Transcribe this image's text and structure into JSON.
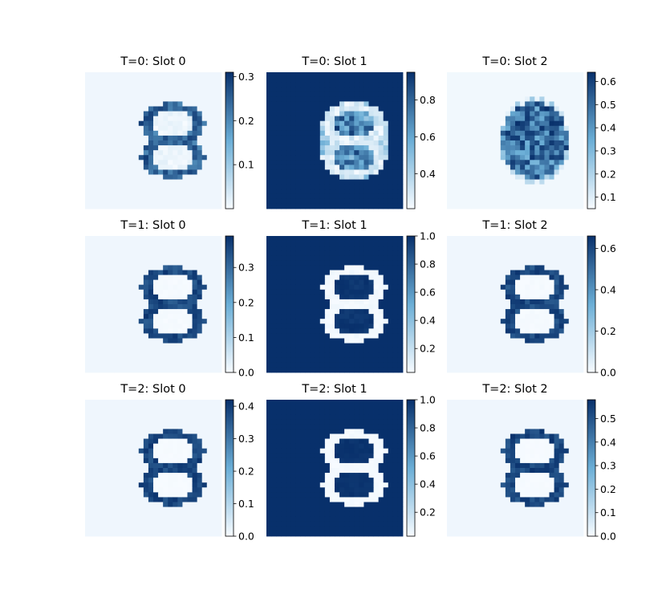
{
  "colors": {
    "cmap_low": "#f7fbff",
    "cmap_mid": "#6baed6",
    "cmap_high": "#08306b",
    "axis": "#000000"
  },
  "chart_data": [
    {
      "type": "heatmap",
      "title": "T=0: Slot 0",
      "cmap": "Blues",
      "grid_size": 28,
      "image": "ring_outline",
      "noise": 0.25,
      "background": "low",
      "clim": [
        0.0,
        0.31
      ],
      "colorbar_ticks": [
        0.1,
        0.2,
        0.3
      ],
      "colorbar_tick_labels": [
        "0.1",
        "0.2",
        "0.3"
      ]
    },
    {
      "type": "heatmap",
      "title": "T=0: Slot 1",
      "cmap": "Blues",
      "grid_size": 28,
      "image": "ring_inverted",
      "noise": 0.35,
      "background": "high",
      "clim": [
        0.21,
        0.95
      ],
      "colorbar_ticks": [
        0.4,
        0.6,
        0.8
      ],
      "colorbar_tick_labels": [
        "0.4",
        "0.6",
        "0.8"
      ]
    },
    {
      "type": "heatmap",
      "title": "T=0: Slot 2",
      "cmap": "Blues",
      "grid_size": 28,
      "image": "ring_filled",
      "noise": 0.4,
      "background": "low",
      "clim": [
        0.05,
        0.64
      ],
      "colorbar_ticks": [
        0.1,
        0.2,
        0.3,
        0.4,
        0.5,
        0.6
      ],
      "colorbar_tick_labels": [
        "0.1",
        "0.2",
        "0.3",
        "0.4",
        "0.5",
        "0.6"
      ]
    },
    {
      "type": "heatmap",
      "title": "T=1: Slot 0",
      "cmap": "Blues",
      "grid_size": 28,
      "image": "ring_outline",
      "noise": 0.05,
      "background": "low",
      "clim": [
        0.0,
        0.39
      ],
      "colorbar_ticks": [
        0.0,
        0.1,
        0.2,
        0.3
      ],
      "colorbar_tick_labels": [
        "0.0",
        "0.1",
        "0.2",
        "0.3"
      ]
    },
    {
      "type": "heatmap",
      "title": "T=1: Slot 1",
      "cmap": "Blues",
      "grid_size": 28,
      "image": "ring_inverted",
      "noise": 0.05,
      "background": "high",
      "clim": [
        0.03,
        1.0
      ],
      "colorbar_ticks": [
        0.2,
        0.4,
        0.6,
        0.8,
        1.0
      ],
      "colorbar_tick_labels": [
        "0.2",
        "0.4",
        "0.6",
        "0.8",
        "1.0"
      ]
    },
    {
      "type": "heatmap",
      "title": "T=1: Slot 2",
      "cmap": "Blues",
      "grid_size": 28,
      "image": "ring_outline",
      "noise": 0.05,
      "background": "low",
      "clim": [
        0.0,
        0.66
      ],
      "colorbar_ticks": [
        0.0,
        0.2,
        0.4,
        0.6
      ],
      "colorbar_tick_labels": [
        "0.0",
        "0.2",
        "0.4",
        "0.6"
      ]
    },
    {
      "type": "heatmap",
      "title": "T=2: Slot 0",
      "cmap": "Blues",
      "grid_size": 28,
      "image": "ring_outline",
      "noise": 0.03,
      "background": "low",
      "clim": [
        0.0,
        0.42
      ],
      "colorbar_ticks": [
        0.0,
        0.1,
        0.2,
        0.3,
        0.4
      ],
      "colorbar_tick_labels": [
        "0.0",
        "0.1",
        "0.2",
        "0.3",
        "0.4"
      ]
    },
    {
      "type": "heatmap",
      "title": "T=2: Slot 1",
      "cmap": "Blues",
      "grid_size": 28,
      "image": "ring_inverted",
      "noise": 0.03,
      "background": "high",
      "clim": [
        0.03,
        1.0
      ],
      "colorbar_ticks": [
        0.2,
        0.4,
        0.6,
        0.8,
        1.0
      ],
      "colorbar_tick_labels": [
        "0.2",
        "0.4",
        "0.6",
        "0.8",
        "1.0"
      ]
    },
    {
      "type": "heatmap",
      "title": "T=2: Slot 2",
      "cmap": "Blues",
      "grid_size": 28,
      "image": "ring_outline",
      "noise": 0.03,
      "background": "low",
      "clim": [
        0.0,
        0.58
      ],
      "colorbar_ticks": [
        0.0,
        0.1,
        0.2,
        0.3,
        0.4,
        0.5
      ],
      "colorbar_tick_labels": [
        "0.0",
        "0.1",
        "0.2",
        "0.3",
        "0.4",
        "0.5"
      ]
    }
  ]
}
